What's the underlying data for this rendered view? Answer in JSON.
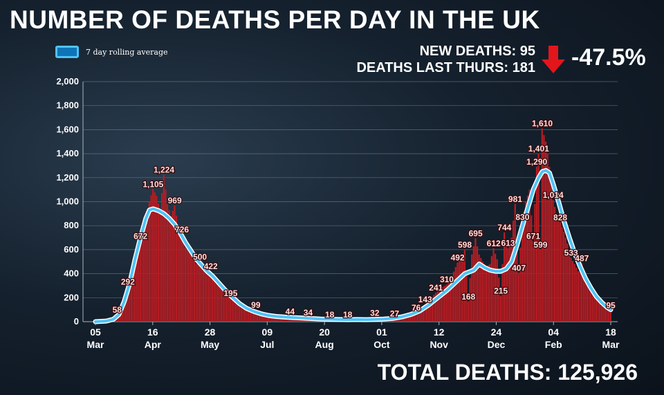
{
  "header": {
    "title": "NUMBER OF DEATHS PER DAY IN THE UK",
    "legend_label": "7 day rolling average",
    "new_deaths": "NEW DEATHS: 95",
    "deaths_last_thurs": "DEATHS LAST THURS: 181",
    "change": "-47.5%",
    "total_deaths": "TOTAL DEATHS: 125,926"
  },
  "colors": {
    "bars": "#b81c22",
    "line": "#4fc3f7",
    "arrow": "#e3161c",
    "labels": "#ffe0e0"
  },
  "chart_data": {
    "type": "bar",
    "ylim": [
      0,
      2000
    ],
    "yticks": [
      "0",
      "200",
      "400",
      "600",
      "800",
      "1,000",
      "1,200",
      "1,400",
      "1,600",
      "1,800",
      "2,000"
    ],
    "xticks": [
      {
        "day": "05",
        "month": "Mar"
      },
      {
        "day": "16",
        "month": "Apr"
      },
      {
        "day": "28",
        "month": "May"
      },
      {
        "day": "09",
        "month": "Jul"
      },
      {
        "day": "20",
        "month": "Aug"
      },
      {
        "day": "01",
        "month": "Oct"
      },
      {
        "day": "12",
        "month": "Nov"
      },
      {
        "day": "24",
        "month": "Dec"
      },
      {
        "day": "04",
        "month": "Feb"
      },
      {
        "day": "18",
        "month": "Mar"
      }
    ],
    "series": [
      {
        "name": "Deaths per day",
        "points": [
          [
            0,
            0
          ],
          [
            3,
            2
          ],
          [
            6,
            5
          ],
          [
            8,
            10
          ],
          [
            10,
            30
          ],
          [
            12,
            58
          ],
          [
            14,
            110
          ],
          [
            16,
            200
          ],
          [
            18,
            292
          ],
          [
            20,
            380
          ],
          [
            22,
            480
          ],
          [
            24,
            600
          ],
          [
            25,
            672
          ],
          [
            26,
            760
          ],
          [
            28,
            850
          ],
          [
            30,
            1000
          ],
          [
            32,
            1105
          ],
          [
            34,
            1050
          ],
          [
            36,
            920
          ],
          [
            38,
            1224
          ],
          [
            40,
            980
          ],
          [
            42,
            880
          ],
          [
            44,
            969
          ],
          [
            46,
            800
          ],
          [
            48,
            726
          ],
          [
            50,
            620
          ],
          [
            53,
            560
          ],
          [
            56,
            480
          ],
          [
            58,
            500
          ],
          [
            60,
            430
          ],
          [
            62,
            400
          ],
          [
            64,
            422
          ],
          [
            67,
            330
          ],
          [
            70,
            290
          ],
          [
            73,
            220
          ],
          [
            75,
            195
          ],
          [
            78,
            170
          ],
          [
            82,
            140
          ],
          [
            86,
            110
          ],
          [
            89,
            99
          ],
          [
            92,
            85
          ],
          [
            96,
            70
          ],
          [
            100,
            60
          ],
          [
            104,
            50
          ],
          [
            108,
            44
          ],
          [
            113,
            38
          ],
          [
            118,
            34
          ],
          [
            123,
            28
          ],
          [
            128,
            20
          ],
          [
            133,
            18
          ],
          [
            138,
            15
          ],
          [
            143,
            18
          ],
          [
            148,
            14
          ],
          [
            152,
            20
          ],
          [
            157,
            32
          ],
          [
            162,
            30
          ],
          [
            166,
            27
          ],
          [
            171,
            40
          ],
          [
            175,
            60
          ],
          [
            178,
            76
          ],
          [
            181,
            110
          ],
          [
            183,
            143
          ],
          [
            186,
            190
          ],
          [
            189,
            241
          ],
          [
            192,
            280
          ],
          [
            195,
            310
          ],
          [
            198,
            380
          ],
          [
            201,
            492
          ],
          [
            203,
            520
          ],
          [
            205,
            598
          ],
          [
            207,
            168
          ],
          [
            209,
            560
          ],
          [
            211,
            695
          ],
          [
            213,
            560
          ],
          [
            215,
            500
          ],
          [
            217,
            460
          ],
          [
            219,
            480
          ],
          [
            221,
            612
          ],
          [
            223,
            520
          ],
          [
            225,
            215
          ],
          [
            227,
            744
          ],
          [
            229,
            613
          ],
          [
            231,
            700
          ],
          [
            233,
            981
          ],
          [
            235,
            407
          ],
          [
            237,
            830
          ],
          [
            239,
            1000
          ],
          [
            241,
            1100
          ],
          [
            243,
            671
          ],
          [
            245,
            1290
          ],
          [
            246,
            1401
          ],
          [
            247,
            599
          ],
          [
            248,
            1610
          ],
          [
            250,
            1500
          ],
          [
            252,
            1290
          ],
          [
            254,
            1014
          ],
          [
            256,
            900
          ],
          [
            258,
            828
          ],
          [
            260,
            750
          ],
          [
            262,
            650
          ],
          [
            264,
            533
          ],
          [
            266,
            480
          ],
          [
            268,
            420
          ],
          [
            270,
            487
          ],
          [
            272,
            380
          ],
          [
            274,
            300
          ],
          [
            276,
            250
          ],
          [
            278,
            200
          ],
          [
            280,
            181
          ],
          [
            282,
            150
          ],
          [
            284,
            120
          ],
          [
            286,
            95
          ]
        ]
      },
      {
        "name": "7 day rolling average",
        "points": [
          [
            0,
            0
          ],
          [
            6,
            5
          ],
          [
            10,
            20
          ],
          [
            13,
            60
          ],
          [
            16,
            170
          ],
          [
            19,
            320
          ],
          [
            22,
            520
          ],
          [
            25,
            700
          ],
          [
            28,
            860
          ],
          [
            30,
            930
          ],
          [
            32,
            940
          ],
          [
            35,
            925
          ],
          [
            38,
            900
          ],
          [
            41,
            860
          ],
          [
            44,
            810
          ],
          [
            47,
            740
          ],
          [
            50,
            660
          ],
          [
            53,
            590
          ],
          [
            56,
            520
          ],
          [
            59,
            470
          ],
          [
            62,
            420
          ],
          [
            65,
            380
          ],
          [
            68,
            330
          ],
          [
            71,
            280
          ],
          [
            74,
            230
          ],
          [
            77,
            190
          ],
          [
            80,
            150
          ],
          [
            84,
            110
          ],
          [
            88,
            85
          ],
          [
            92,
            65
          ],
          [
            96,
            52
          ],
          [
            100,
            44
          ],
          [
            105,
            38
          ],
          [
            110,
            34
          ],
          [
            115,
            30
          ],
          [
            120,
            26
          ],
          [
            125,
            22
          ],
          [
            130,
            20
          ],
          [
            135,
            18
          ],
          [
            140,
            17
          ],
          [
            145,
            18
          ],
          [
            150,
            17
          ],
          [
            155,
            19
          ],
          [
            160,
            22
          ],
          [
            165,
            27
          ],
          [
            170,
            40
          ],
          [
            175,
            60
          ],
          [
            180,
            90
          ],
          [
            185,
            140
          ],
          [
            190,
            200
          ],
          [
            195,
            260
          ],
          [
            200,
            330
          ],
          [
            205,
            400
          ],
          [
            210,
            430
          ],
          [
            213,
            480
          ],
          [
            216,
            450
          ],
          [
            219,
            430
          ],
          [
            222,
            420
          ],
          [
            225,
            420
          ],
          [
            228,
            440
          ],
          [
            231,
            500
          ],
          [
            234,
            640
          ],
          [
            237,
            800
          ],
          [
            240,
            950
          ],
          [
            243,
            1100
          ],
          [
            246,
            1200
          ],
          [
            248,
            1250
          ],
          [
            250,
            1260
          ],
          [
            252,
            1240
          ],
          [
            254,
            1150
          ],
          [
            257,
            1000
          ],
          [
            260,
            840
          ],
          [
            263,
            700
          ],
          [
            266,
            570
          ],
          [
            269,
            460
          ],
          [
            272,
            360
          ],
          [
            275,
            280
          ],
          [
            278,
            210
          ],
          [
            281,
            160
          ],
          [
            284,
            120
          ],
          [
            286,
            100
          ]
        ]
      }
    ],
    "data_labels": [
      {
        "x": 12,
        "v": 58,
        "text": "58"
      },
      {
        "x": 18,
        "v": 292,
        "text": "292"
      },
      {
        "x": 25,
        "v": 672,
        "text": "672"
      },
      {
        "x": 32,
        "v": 1105,
        "text": "1,105"
      },
      {
        "x": 38,
        "v": 1224,
        "text": "1,224"
      },
      {
        "x": 44,
        "v": 969,
        "text": "969"
      },
      {
        "x": 48,
        "v": 726,
        "text": "726"
      },
      {
        "x": 58,
        "v": 500,
        "text": "500"
      },
      {
        "x": 64,
        "v": 422,
        "text": "422"
      },
      {
        "x": 75,
        "v": 195,
        "text": "195"
      },
      {
        "x": 89,
        "v": 99,
        "text": "99"
      },
      {
        "x": 108,
        "v": 44,
        "text": "44"
      },
      {
        "x": 118,
        "v": 34,
        "text": "34"
      },
      {
        "x": 130,
        "v": 18,
        "text": "18"
      },
      {
        "x": 140,
        "v": 18,
        "text": "18"
      },
      {
        "x": 155,
        "v": 32,
        "text": "32"
      },
      {
        "x": 166,
        "v": 27,
        "text": "27"
      },
      {
        "x": 178,
        "v": 76,
        "text": "76"
      },
      {
        "x": 183,
        "v": 143,
        "text": "143"
      },
      {
        "x": 189,
        "v": 241,
        "text": "241"
      },
      {
        "x": 195,
        "v": 310,
        "text": "310"
      },
      {
        "x": 201,
        "v": 492,
        "text": "492"
      },
      {
        "x": 207,
        "v": 168,
        "text": "168"
      },
      {
        "x": 205,
        "v": 598,
        "text": "598"
      },
      {
        "x": 211,
        "v": 695,
        "text": "695"
      },
      {
        "x": 221,
        "v": 612,
        "text": "612"
      },
      {
        "x": 225,
        "v": 215,
        "text": "215"
      },
      {
        "x": 227,
        "v": 744,
        "text": "744"
      },
      {
        "x": 229,
        "v": 613,
        "text": "613"
      },
      {
        "x": 233,
        "v": 981,
        "text": "981"
      },
      {
        "x": 235,
        "v": 407,
        "text": "407"
      },
      {
        "x": 237,
        "v": 830,
        "text": "830"
      },
      {
        "x": 243,
        "v": 671,
        "text": "671"
      },
      {
        "x": 245,
        "v": 1290,
        "text": "1,290"
      },
      {
        "x": 246,
        "v": 1401,
        "text": "1,401"
      },
      {
        "x": 247,
        "v": 599,
        "text": "599"
      },
      {
        "x": 248,
        "v": 1610,
        "text": "1,610"
      },
      {
        "x": 254,
        "v": 1014,
        "text": "1,014"
      },
      {
        "x": 258,
        "v": 828,
        "text": "828"
      },
      {
        "x": 264,
        "v": 533,
        "text": "533"
      },
      {
        "x": 270,
        "v": 487,
        "text": "487"
      },
      {
        "x": 286,
        "v": 95,
        "text": "95"
      }
    ]
  }
}
